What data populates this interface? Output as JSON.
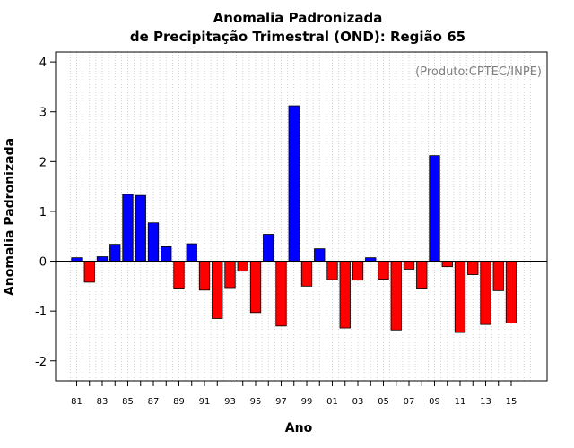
{
  "chart_data": {
    "type": "bar",
    "title_line1": "Anomalia Padronizada",
    "title_line2": "de Precipitação Trimestral (OND): Região 65",
    "xlabel": "Ano",
    "ylabel": "Anomalia Padronizada",
    "source_note": "(Produto:CPTEC/INPE)",
    "ylim": [
      -2.4,
      4.2
    ],
    "yticks": [
      -2,
      -1,
      0,
      1,
      2,
      3,
      4
    ],
    "grid": "vertical dotted",
    "positive_color": "#0000ff",
    "negative_color": "#ff0000",
    "xtick_labels": [
      "81",
      "83",
      "85",
      "87",
      "89",
      "91",
      "93",
      "95",
      "97",
      "99",
      "01",
      "03",
      "05",
      "07",
      "09",
      "11",
      "13",
      "15"
    ],
    "categories": [
      "1981",
      "1982",
      "1983",
      "1984",
      "1985",
      "1986",
      "1987",
      "1988",
      "1989",
      "1990",
      "1991",
      "1992",
      "1993",
      "1994",
      "1995",
      "1996",
      "1997",
      "1998",
      "1999",
      "2000",
      "2001",
      "2002",
      "2003",
      "2004",
      "2005",
      "2006",
      "2007",
      "2008",
      "2009",
      "2010",
      "2011",
      "2012",
      "2013",
      "2014",
      "2015"
    ],
    "values": [
      0.07,
      -0.42,
      0.09,
      0.34,
      1.34,
      1.32,
      0.77,
      0.29,
      -0.54,
      0.35,
      -0.58,
      -1.15,
      -0.53,
      -0.2,
      -1.03,
      0.54,
      -1.3,
      3.12,
      -0.5,
      0.25,
      -0.37,
      -1.34,
      -0.38,
      0.07,
      -0.36,
      -1.38,
      -0.16,
      -0.54,
      2.12,
      -0.11,
      -1.43,
      -0.27,
      -1.27,
      -0.59,
      -1.24
    ]
  }
}
